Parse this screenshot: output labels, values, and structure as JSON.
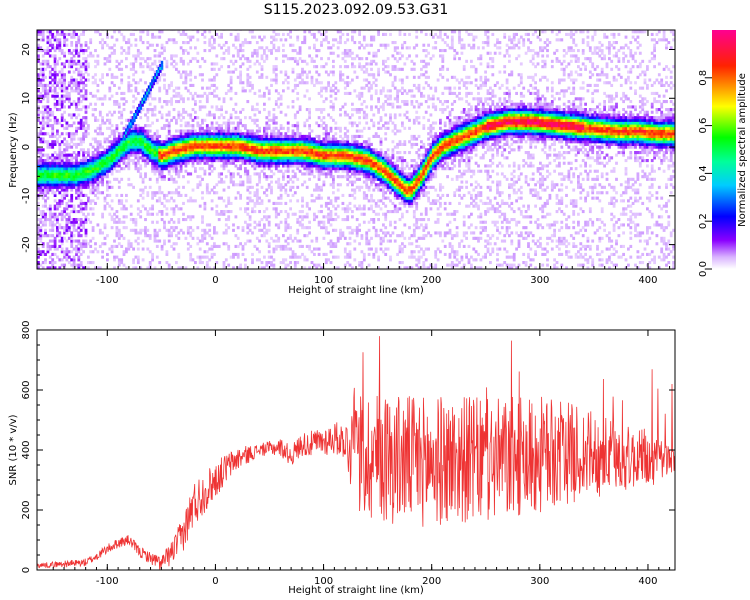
{
  "title": "S115.2023.092.09.53.G31",
  "chart_data": [
    {
      "type": "heatmap",
      "xlabel": "Height of straight line (km)",
      "ylabel": "Frequency (Hz)",
      "xlim": [
        -165,
        425
      ],
      "ylim": [
        -25,
        24
      ],
      "xticks": [
        -100,
        0,
        100,
        200,
        300,
        400
      ],
      "xtick_labels": [
        "-100",
        "0",
        "100",
        "200",
        "300",
        "400"
      ],
      "yticks": [
        -20,
        -10,
        0,
        10,
        20
      ],
      "ytick_labels": [
        "-20",
        "-10",
        "0",
        "10",
        "20"
      ],
      "colorbar": {
        "label": "Normalized spectral amplitude",
        "range": [
          0,
          1
        ],
        "ticks": [
          0.0,
          0.2,
          0.4,
          0.6,
          0.8
        ],
        "tick_labels": [
          "0.0",
          "0.2",
          "0.4",
          "0.6",
          "0.8"
        ],
        "colors": [
          "#ffffff",
          "#8a00ff",
          "#0000ff",
          "#00ffff",
          "#00ff00",
          "#ffff00",
          "#ff0000",
          "#ff0080"
        ]
      },
      "ridge": {
        "x": [
          -130,
          -115,
          -100,
          -90,
          -80,
          -70,
          -60,
          -50,
          -40,
          -20,
          0,
          20,
          40,
          60,
          80,
          100,
          120,
          140,
          155,
          165,
          175,
          180,
          190,
          200,
          210,
          230,
          250,
          270,
          290,
          310,
          330,
          350,
          370,
          390,
          410,
          425
        ],
        "y": [
          -6,
          -5,
          -3,
          -1,
          1,
          1,
          -1,
          -2,
          -1,
          0,
          0,
          0,
          -1,
          -1,
          -1,
          -2,
          -2,
          -3,
          -5,
          -7,
          -9,
          -9,
          -6,
          -2,
          0,
          2,
          4,
          5,
          5,
          4.5,
          4,
          3.5,
          3,
          3,
          2.5,
          2.5
        ]
      }
    },
    {
      "type": "line",
      "xlabel": "Height of straight line (km)",
      "ylabel": "SNR (10 * v/v)",
      "xlim": [
        -165,
        425
      ],
      "ylim": [
        0,
        800
      ],
      "xticks": [
        -100,
        0,
        100,
        200,
        300,
        400
      ],
      "xtick_labels": [
        "-100",
        "0",
        "100",
        "200",
        "300",
        "400"
      ],
      "yticks": [
        0,
        200,
        400,
        600,
        800
      ],
      "ytick_labels": [
        "0",
        "200",
        "400",
        "600",
        "800"
      ],
      "color": "#ee3333",
      "envelope": {
        "x": [
          -165,
          -140,
          -120,
          -110,
          -100,
          -90,
          -80,
          -70,
          -60,
          -50,
          -40,
          -30,
          -20,
          -10,
          0,
          10,
          20,
          40,
          60,
          70,
          80,
          90,
          100,
          110,
          120,
          125,
          130,
          150,
          170,
          200,
          230,
          250,
          270,
          300,
          330,
          360,
          390,
          410,
          425
        ],
        "y": [
          15,
          20,
          25,
          45,
          70,
          90,
          100,
          60,
          40,
          20,
          60,
          120,
          220,
          260,
          300,
          340,
          370,
          400,
          410,
          380,
          420,
          420,
          430,
          440,
          430,
          400,
          380,
          380,
          370,
          360,
          370,
          360,
          370,
          380,
          390,
          380,
          370,
          360,
          360
        ]
      },
      "spread": {
        "x": [
          -165,
          -60,
          -40,
          -20,
          0,
          40,
          80,
          120,
          130,
          200,
          300,
          425
        ],
        "y": [
          8,
          20,
          40,
          80,
          60,
          20,
          40,
          60,
          220,
          220,
          200,
          60
        ]
      }
    }
  ]
}
